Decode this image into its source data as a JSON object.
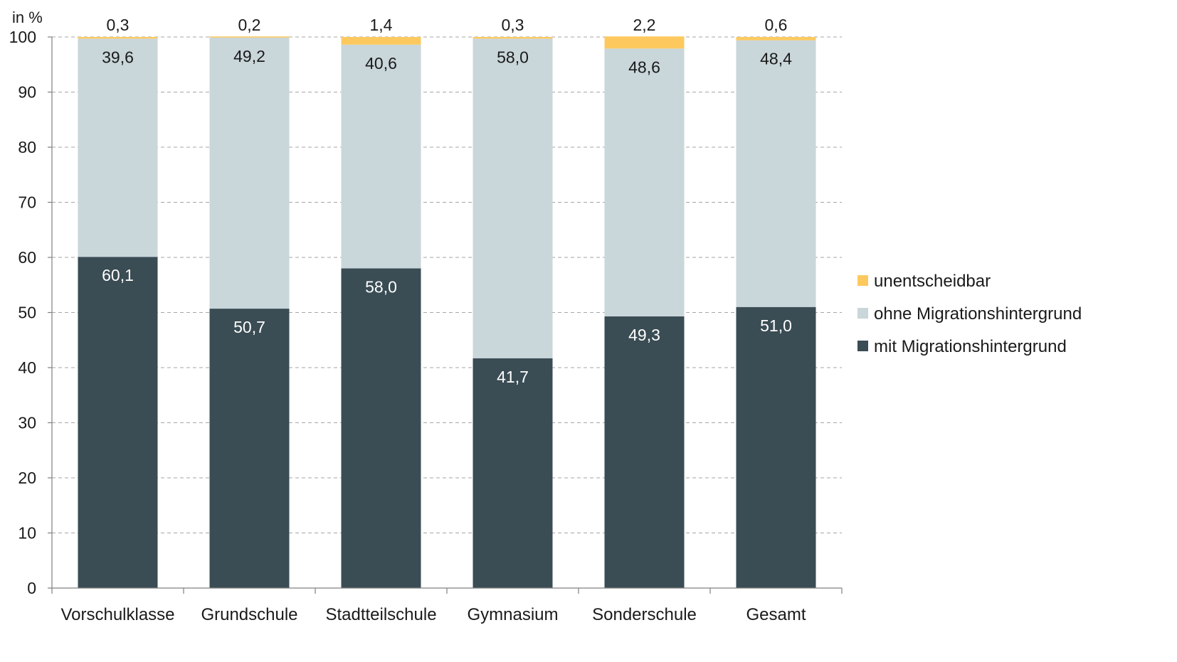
{
  "chart_data": {
    "type": "bar",
    "stacked": true,
    "ylabel": "in %",
    "ylim": [
      0,
      100
    ],
    "yticks": [
      "0",
      "10",
      "20",
      "30",
      "40",
      "50",
      "60",
      "70",
      "80",
      "90",
      "100"
    ],
    "grid": true,
    "legend_position": "right",
    "categories": [
      "Vorschulklasse",
      "Grundschule",
      "Stadtteilschule",
      "Gymnasium",
      "Sonderschule",
      "Gesamt"
    ],
    "series": [
      {
        "name": "mit Migrationshintergrund",
        "color": "#3a4c54",
        "label_color": "#ffffff",
        "values": [
          60.1,
          50.7,
          58.0,
          41.7,
          49.3,
          51.0
        ],
        "labels": [
          "60,1",
          "50,7",
          "58,0",
          "41,7",
          "49,3",
          "51,0"
        ]
      },
      {
        "name": "ohne Migrationshintergrund",
        "color": "#c9d6da",
        "label_color": "#1a1a1a",
        "values": [
          39.6,
          49.2,
          40.6,
          58.0,
          48.6,
          48.4
        ],
        "labels": [
          "39,6",
          "49,2",
          "40,6",
          "58,0",
          "48,6",
          "48,4"
        ]
      },
      {
        "name": "unentscheidbar",
        "color": "#fdc95f",
        "label_color": "#1a1a1a",
        "values": [
          0.3,
          0.2,
          1.4,
          0.3,
          2.2,
          0.6
        ],
        "labels": [
          "0,3",
          "0,2",
          "1,4",
          "0,3",
          "2,2",
          "0,6"
        ]
      }
    ],
    "legend_order": [
      "unentscheidbar",
      "ohne Migrationshintergrund",
      "mit Migrationshintergrund"
    ]
  }
}
